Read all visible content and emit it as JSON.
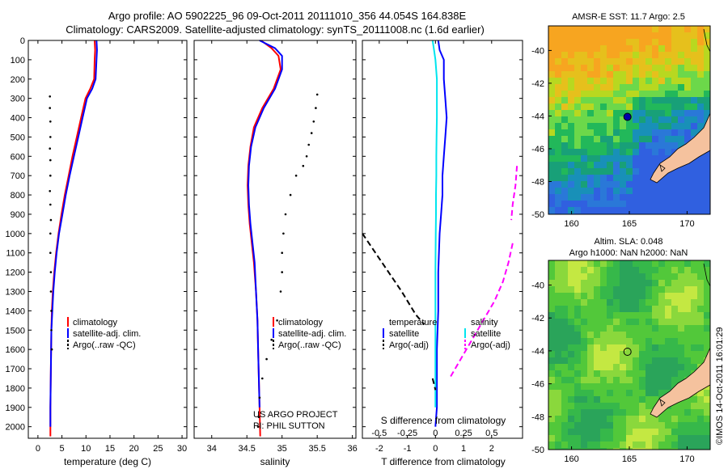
{
  "header": {
    "title_line1": "Argo profile: AO 5902225_96 09-Oct-2011 20111010_356 44.054S 164.838E",
    "title_line2": "Climatology: CARS2009. Satellite-adjusted climatology: synTS_20111008.nc (1.6d earlier)"
  },
  "colors": {
    "climatology": "#ff0000",
    "satellite": "#0000ff",
    "argo": "#000000",
    "t_satellite": "#00e5ee",
    "s_argo": "#ff00ff",
    "land": "#f5c29e"
  },
  "chart_data": [
    {
      "id": "temperature",
      "type": "line",
      "xlabel": "temperature (deg C)",
      "xlim": [
        -2,
        31
      ],
      "xticks": [
        0,
        5,
        10,
        15,
        20,
        25,
        30
      ],
      "ylim": [
        2060,
        0
      ],
      "yticks": [
        0,
        100,
        200,
        300,
        400,
        500,
        600,
        700,
        800,
        900,
        1000,
        1100,
        1200,
        1300,
        1400,
        1500,
        1600,
        1700,
        1800,
        1900,
        2000
      ],
      "series": [
        {
          "name": "climatology",
          "style": "line",
          "x": [
            11.8,
            11.9,
            11.8,
            11.7,
            10.9,
            9.9,
            9.0,
            8.1,
            7.2,
            6.4,
            5.6,
            4.9,
            4.3,
            3.8,
            3.4,
            3.1,
            2.9,
            2.8,
            2.7,
            2.6,
            2.6
          ],
          "y": [
            0,
            50,
            100,
            200,
            250,
            300,
            400,
            500,
            600,
            700,
            800,
            900,
            1000,
            1100,
            1200,
            1300,
            1400,
            1500,
            1700,
            1900,
            2050
          ]
        },
        {
          "name": "satellite-adj. clim.",
          "style": "line",
          "x": [
            12.2,
            12.3,
            12.2,
            12.0,
            11.3,
            10.2,
            9.3,
            8.4,
            7.5,
            6.6,
            5.8,
            5.1,
            4.4,
            3.9,
            3.5,
            3.2,
            3.0,
            2.8,
            2.7,
            2.6,
            2.6
          ],
          "y": [
            0,
            50,
            100,
            200,
            250,
            300,
            400,
            500,
            600,
            700,
            800,
            900,
            1000,
            1100,
            1200,
            1300,
            1400,
            1500,
            1700,
            1900,
            2000
          ]
        },
        {
          "name": "Argo(..raw -QC)",
          "style": "dots",
          "x": [
            2.5,
            2.5,
            2.6,
            2.6,
            2.5,
            2.6,
            2.6,
            2.5,
            2.6,
            2.7,
            2.6,
            2.6,
            2.7,
            2.7,
            2.8,
            2.8,
            2.9
          ],
          "y": [
            290,
            350,
            420,
            500,
            560,
            620,
            700,
            780,
            850,
            930,
            1000,
            1100,
            1200,
            1300,
            1400,
            1500,
            1600
          ]
        }
      ],
      "legend": [
        "climatology",
        "satellite-adj. clim.",
        "Argo(..raw -QC)"
      ]
    },
    {
      "id": "salinity",
      "type": "line",
      "xlabel": "salinity",
      "xlim": [
        33.75,
        36.05
      ],
      "xticks": [
        34,
        34.5,
        35,
        35.5,
        36
      ],
      "ylim": [
        2060,
        0
      ],
      "series": [
        {
          "name": "climatology",
          "style": "line",
          "x": [
            34.7,
            34.85,
            34.95,
            34.98,
            34.88,
            34.72,
            34.6,
            34.55,
            34.52,
            34.51,
            34.52,
            34.54,
            34.57,
            34.6,
            34.63,
            34.65,
            34.66,
            34.67,
            34.68,
            34.69
          ],
          "y": [
            0,
            40,
            80,
            150,
            250,
            350,
            450,
            550,
            650,
            750,
            850,
            950,
            1050,
            1150,
            1300,
            1450,
            1600,
            1750,
            1900,
            2050
          ]
        },
        {
          "name": "satellite-adj. clim.",
          "style": "line",
          "x": [
            34.68,
            34.9,
            35.0,
            35.0,
            34.9,
            34.74,
            34.62,
            34.56,
            34.53,
            34.52,
            34.53,
            34.55,
            34.58,
            34.61,
            34.63,
            34.65,
            34.66,
            34.67,
            34.68
          ],
          "y": [
            0,
            40,
            80,
            150,
            250,
            350,
            450,
            550,
            650,
            750,
            850,
            950,
            1050,
            1150,
            1300,
            1450,
            1600,
            1750,
            1900
          ]
        },
        {
          "name": "Argo(..raw -QC)",
          "style": "dots",
          "x": [
            35.5,
            35.48,
            35.45,
            35.42,
            35.38,
            35.35,
            35.3,
            35.2,
            35.12,
            35.05,
            35.02,
            35.0,
            35.0,
            34.98,
            34.93,
            34.85,
            34.78,
            34.72,
            34.68,
            34.67,
            34.66
          ],
          "y": [
            280,
            350,
            420,
            480,
            540,
            600,
            650,
            700,
            800,
            900,
            1000,
            1100,
            1200,
            1300,
            1450,
            1550,
            1650,
            1750,
            1850,
            1950,
            2000
          ]
        }
      ],
      "legend": [
        "climatology",
        "satellite-adj. clim.",
        "Argo(..raw -QC)"
      ]
    },
    {
      "id": "difference",
      "type": "line",
      "xlabel": "T difference from climatology",
      "xlim": [
        -2.6,
        3.1
      ],
      "xticks": [
        -2,
        -1,
        0,
        1,
        2
      ],
      "top_label": "S difference from climatology",
      "top_ticks": [
        "-0.5",
        "-0.25",
        "0",
        "0.25",
        "0.5"
      ],
      "top_tick_pos": [
        -2.0,
        -1.0,
        0.0,
        1.0,
        2.0
      ],
      "ylim": [
        2060,
        0
      ],
      "series": [
        {
          "name": "temperature satellite",
          "color_key": "satellite",
          "style": "line",
          "x": [
            0.1,
            0.15,
            0.3,
            0.3,
            0.35,
            0.4,
            0.35,
            0.3,
            0.25,
            0.25,
            0.2,
            0.15,
            0.1,
            0.1,
            0.05,
            0.05,
            0.05,
            0.0
          ],
          "y": [
            0,
            50,
            100,
            200,
            300,
            400,
            500,
            600,
            700,
            800,
            900,
            1000,
            1200,
            1400,
            1600,
            1800,
            1900,
            2000
          ]
        },
        {
          "name": "salinity satellite",
          "color_key": "t_satellite",
          "style": "line",
          "x": [
            -0.1,
            -0.05,
            0.0,
            0.05,
            0.05,
            0.05,
            0.04,
            0.03,
            0.03,
            0.02,
            0.02,
            0.01,
            0.0,
            0.0,
            0.0,
            0.0
          ],
          "y": [
            0,
            50,
            100,
            200,
            300,
            400,
            500,
            600,
            700,
            800,
            900,
            1000,
            1200,
            1400,
            1600,
            1900
          ]
        },
        {
          "name": "temperature Argo(-adj)",
          "color_key": "argo",
          "style": "dashed",
          "x": [
            -2.6,
            -1.9,
            -1.2,
            -0.7,
            -0.4
          ],
          "y": [
            1000,
            1150,
            1300,
            1420,
            1470
          ]
        },
        {
          "name": "temperature Argo(-adj) deep",
          "color_key": "argo",
          "style": "dashed",
          "x": [
            -0.1,
            -0.05,
            0.0
          ],
          "y": [
            1750,
            1780,
            1810
          ]
        },
        {
          "name": "salinity Argo(-adj)",
          "color_key": "s_argo",
          "style": "dashed",
          "x": [
            2.75,
            2.6,
            2.4,
            2.1,
            1.7,
            1.3,
            0.9,
            0.5
          ],
          "y": [
            1050,
            1150,
            1250,
            1350,
            1450,
            1550,
            1650,
            1750
          ]
        },
        {
          "name": "salinity Argo(-adj) upper",
          "color_key": "s_argo",
          "style": "dashed",
          "x": [
            2.9,
            2.85,
            2.75,
            2.7
          ],
          "y": [
            650,
            750,
            850,
            930
          ]
        }
      ],
      "legend": {
        "temperature": "temperature",
        "salinity": "salinity",
        "t_sat": "satellite",
        "s_sat": "satellite",
        "t_argo": "Argo(-adj)",
        "s_argo": "Argo(-adj)"
      }
    },
    {
      "id": "sst_map",
      "type": "heatmap",
      "title": "AMSR-E SST: 11.7 Argo: 2.5",
      "xlim": [
        158,
        172
      ],
      "ylim": [
        -50,
        -38.5
      ],
      "xticks": [
        160,
        165,
        170
      ],
      "yticks": [
        -40,
        -42,
        -44,
        -46,
        -48,
        -50
      ],
      "marker": {
        "lon": 164.838,
        "lat": -44.054
      }
    },
    {
      "id": "sla_map",
      "type": "heatmap",
      "title_line1": "Altim. SLA: 0.048",
      "title_line2": "Argo h1000: NaN h2000: NaN",
      "xlim": [
        158,
        172
      ],
      "ylim": [
        -50,
        -38.5
      ],
      "xticks": [
        160,
        165,
        170
      ],
      "yticks": [
        -40,
        -42,
        -44,
        -46,
        -48,
        -50
      ],
      "marker": {
        "lon": 164.838,
        "lat": -44.054
      }
    }
  ],
  "annotations": {
    "project": "US ARGO PROJECT",
    "pi": "PI: PHIL SUTTON",
    "imos": "©IMOS 14-Oct-2011 16:01:29"
  }
}
